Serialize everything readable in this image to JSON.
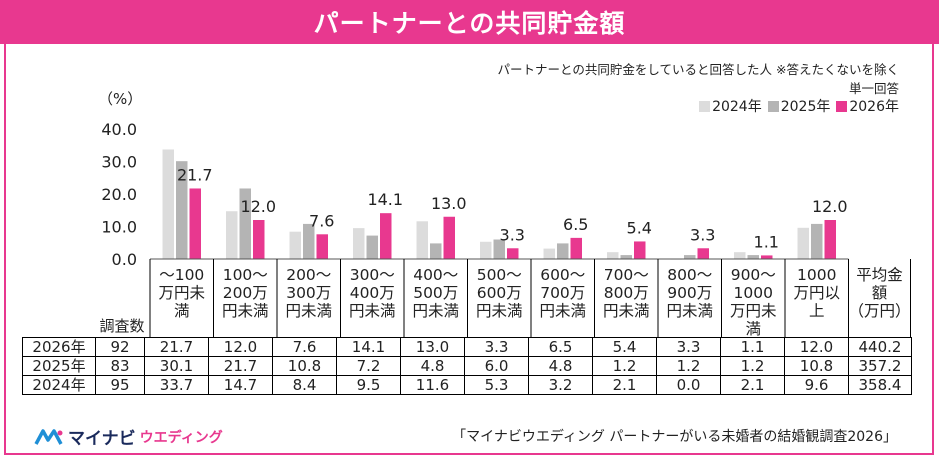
{
  "title": "パートナーとの共同貯金額",
  "note_line1": "パートナーとの共同貯金をしていると回答した人 ※答えたくないを除く",
  "note_line2": "単一回答",
  "unit_label": "（%）",
  "legend": [
    {
      "label": "2024年",
      "color": "#dcdcdc"
    },
    {
      "label": "2025年",
      "color": "#b4b4b4"
    },
    {
      "label": "2026年",
      "color": "#e8388f"
    }
  ],
  "chart_data": {
    "type": "bar",
    "y_ticks": [
      "40.0",
      "30.0",
      "20.0",
      "10.0",
      "0.0"
    ],
    "ylim": [
      0,
      40
    ],
    "categories": [
      [
        "～100",
        "万円未",
        "満"
      ],
      [
        "100～",
        "200万",
        "円未満"
      ],
      [
        "200～",
        "300万",
        "円未満"
      ],
      [
        "300～",
        "400万",
        "円未満"
      ],
      [
        "400～",
        "500万",
        "円未満"
      ],
      [
        "500～",
        "600万",
        "円未満"
      ],
      [
        "600～",
        "700万",
        "円未満"
      ],
      [
        "700～",
        "800万",
        "円未満"
      ],
      [
        "800～",
        "900万",
        "円未満"
      ],
      [
        "900～",
        "1000",
        "万円未",
        "満"
      ],
      [
        "1000",
        "万円以",
        "上"
      ]
    ],
    "series": [
      {
        "name": "2024年",
        "color": "#dcdcdc",
        "values": [
          33.7,
          14.7,
          8.4,
          9.5,
          11.6,
          5.3,
          3.2,
          2.1,
          0.0,
          2.1,
          9.6
        ]
      },
      {
        "name": "2025年",
        "color": "#b4b4b4",
        "values": [
          30.1,
          21.7,
          10.8,
          7.2,
          4.8,
          6.0,
          4.8,
          1.2,
          1.2,
          1.2,
          10.8
        ]
      },
      {
        "name": "2026年",
        "color": "#e8388f",
        "values": [
          21.7,
          12.0,
          7.6,
          14.1,
          13.0,
          3.3,
          6.5,
          5.4,
          3.3,
          1.1,
          12.0
        ]
      }
    ],
    "data_labels_2026": [
      "21.7",
      "12.0",
      "7.6",
      "14.1",
      "13.0",
      "3.3",
      "6.5",
      "5.4",
      "3.3",
      "1.1",
      "12.0"
    ]
  },
  "table": {
    "header_count": "調査数",
    "header_avg": [
      "平均金",
      "額",
      "（万円）"
    ],
    "rows": [
      {
        "year": "2026年",
        "count": "92",
        "values": [
          "21.7",
          "12.0",
          "7.6",
          "14.1",
          "13.0",
          "3.3",
          "6.5",
          "5.4",
          "3.3",
          "1.1",
          "12.0"
        ],
        "avg": "440.2"
      },
      {
        "year": "2025年",
        "count": "83",
        "values": [
          "30.1",
          "21.7",
          "10.8",
          "7.2",
          "4.8",
          "6.0",
          "4.8",
          "1.2",
          "1.2",
          "1.2",
          "10.8"
        ],
        "avg": "357.2"
      },
      {
        "year": "2024年",
        "count": "95",
        "values": [
          "33.7",
          "14.7",
          "8.4",
          "9.5",
          "11.6",
          "5.3",
          "3.2",
          "2.1",
          "0.0",
          "2.1",
          "9.6"
        ],
        "avg": "358.4"
      }
    ]
  },
  "footer": {
    "brand": "マイナビ",
    "brand_sub": "ウエディング",
    "source": "「マイナビウエディング パートナーがいる未婚者の結婚観調査2026」"
  }
}
